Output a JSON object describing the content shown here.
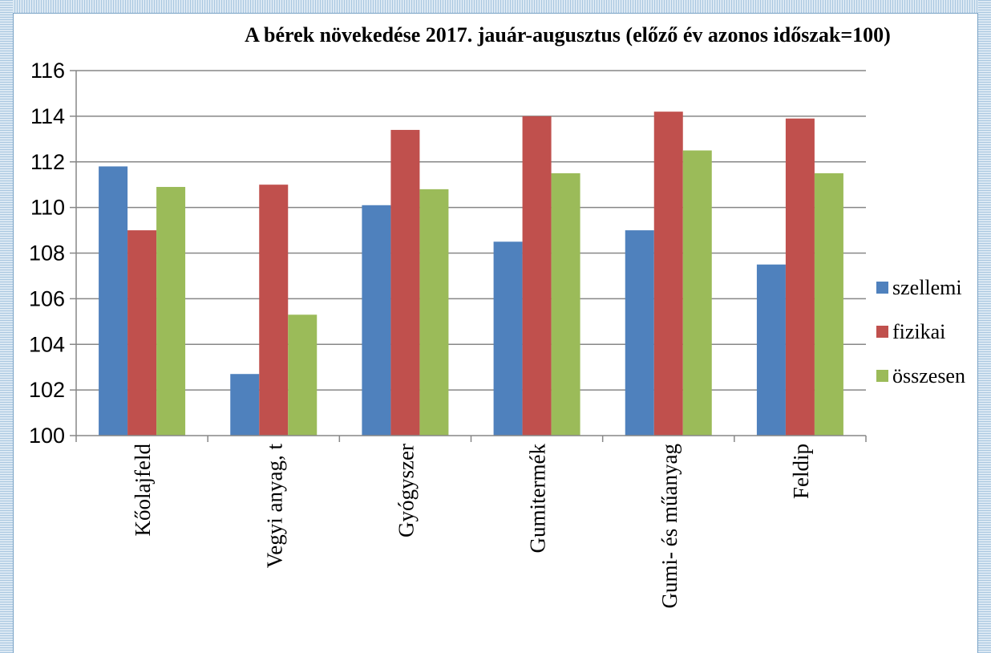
{
  "chart_data": {
    "type": "bar",
    "title": "A bérek növekedése 2017. jauár-augusztus (előző év azonos időszak=100)",
    "xlabel": "",
    "ylabel": "",
    "categories": [
      "Kőolajfeld",
      "Vegyi anyag, t",
      "Gyógyszer",
      "Gumitermék",
      "Gumi- és műanyag",
      "Feldip"
    ],
    "series": [
      {
        "name": "szellemi",
        "color": "#4f81bd",
        "values": [
          111.8,
          102.7,
          110.1,
          108.5,
          109.0,
          107.5
        ]
      },
      {
        "name": "fizikai",
        "color": "#c0504d",
        "values": [
          109.0,
          111.0,
          113.4,
          114.0,
          114.2,
          113.9
        ]
      },
      {
        "name": "összesen",
        "color": "#9bbb59",
        "values": [
          110.9,
          105.3,
          110.8,
          111.5,
          112.5,
          111.5
        ]
      }
    ],
    "ylim": [
      100,
      116
    ],
    "yticks": [
      "100",
      "102",
      "104",
      "106",
      "108",
      "110",
      "112",
      "114",
      "116"
    ],
    "grid": true,
    "legend_position": "right"
  }
}
